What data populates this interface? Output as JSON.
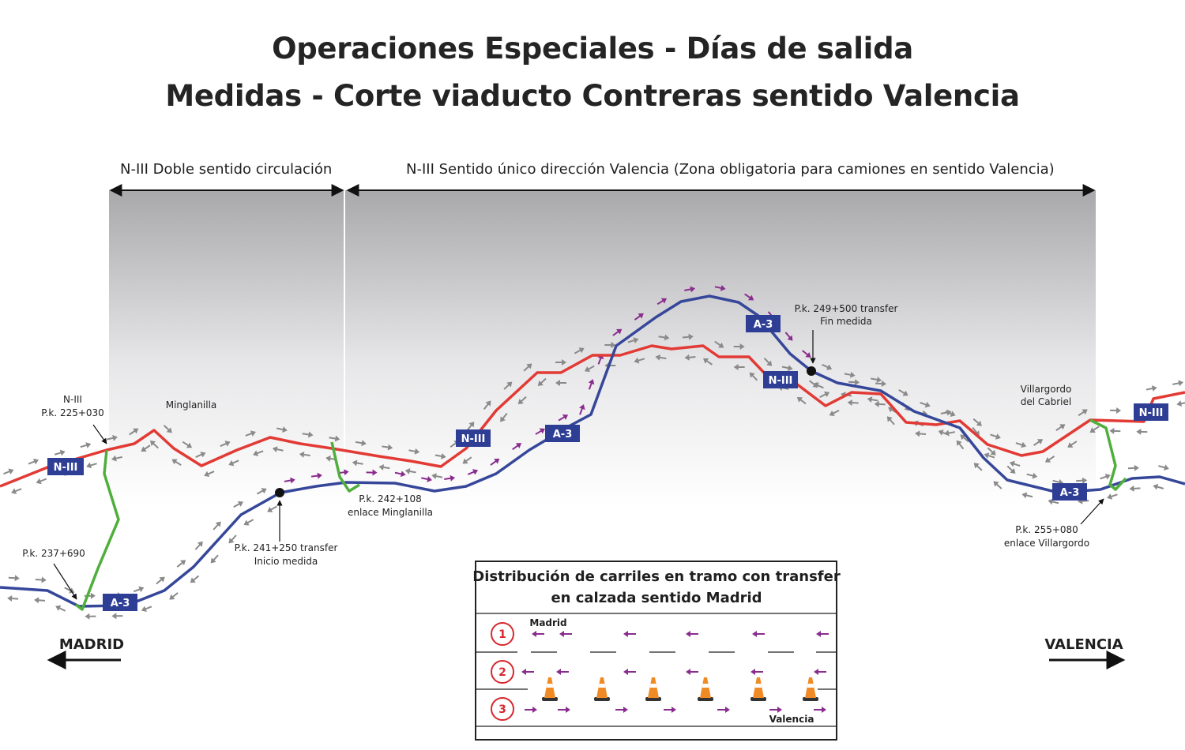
{
  "title": {
    "line1": "Operaciones Especiales - Días de salida",
    "line2": "Medidas - Corte viaducto Contreras sentido Valencia"
  },
  "zones": {
    "double": "N-III Doble sentido circulación",
    "oneway": "N-III Sentido único dirección Valencia (Zona obligatoria para camiones en sentido Valencia)"
  },
  "roads": {
    "n3": "N-III",
    "a3": "A-3",
    "n3_color": "#e23a34",
    "a3_color": "#36479a",
    "link_color": "#4fae3c",
    "sign_color": "#2e3e95"
  },
  "labels": {
    "n3_pk_line1": "N-III",
    "n3_pk_line2": "P.k. 225+030",
    "minglanilla": "Minglanilla",
    "pk237_690": "P.k. 237+690",
    "pk241_line1": "P.k. 241+250 transfer",
    "pk241_line2": "Inicio medida",
    "pk242_line1": "P.k. 242+108",
    "pk242_line2": "enlace Minglanilla",
    "pk249_line1": "P.k. 249+500 transfer",
    "pk249_line2": "Fin medida",
    "villargordo_line1": "Villargordo",
    "villargordo_line2": "del Cabriel",
    "pk255_line1": "P.k. 255+080",
    "pk255_line2": "enlace Villargordo"
  },
  "directions": {
    "madrid": "MADRID",
    "valencia": "VALENCIA"
  },
  "legend_box": {
    "title_line1": "Distribución de carriles en tramo con transfer",
    "title_line2": "en calzada sentido Madrid",
    "lanes": [
      "1",
      "2",
      "3"
    ],
    "madrid_label": "Madrid",
    "valencia_label": "Valencia",
    "arrow_color": "#8a2c8e",
    "cone_color": "#f08a24"
  }
}
